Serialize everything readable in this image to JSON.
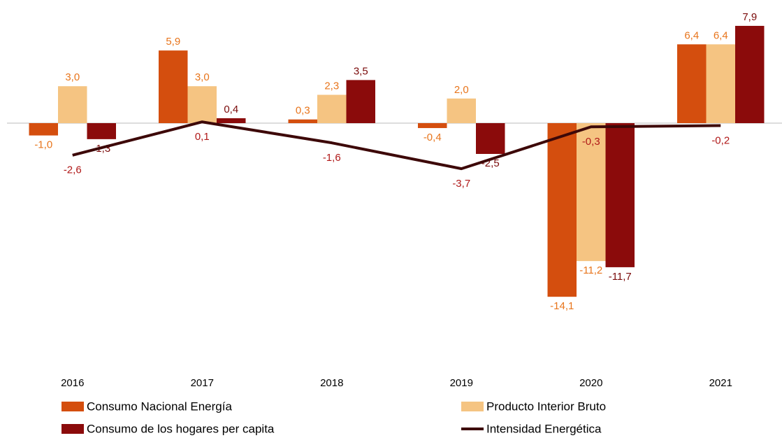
{
  "chart_data": {
    "type": "bar",
    "categories": [
      "2016",
      "2017",
      "2018",
      "2019",
      "2020",
      "2021"
    ],
    "ylim": [
      -20,
      10
    ],
    "series": [
      {
        "name": "Consumo Nacional Energía",
        "color": "#d44e0e",
        "label_color": "#e8751c",
        "values": [
          -1.0,
          5.9,
          0.3,
          -0.4,
          -14.1,
          6.4
        ],
        "value_labels": [
          "-1,0",
          "5,9",
          "0,3",
          "-0,4",
          "-14,1",
          "6,4"
        ]
      },
      {
        "name": "Producto Interior Bruto",
        "color": "#f5c482",
        "label_color": "#e8751c",
        "values": [
          3.0,
          3.0,
          2.3,
          2.0,
          -11.2,
          6.4
        ],
        "value_labels": [
          "3,0",
          "3,0",
          "2,3",
          "2,0",
          "-11,2",
          "6,4"
        ]
      },
      {
        "name": "Consumo de los hogares per capita",
        "color": "#8b0b0b",
        "label_color": "#7a0a0a",
        "values": [
          -1.3,
          0.4,
          3.5,
          -2.5,
          -11.7,
          7.9
        ],
        "value_labels": [
          "-1,3",
          "0,4",
          "3,5",
          "-2,5",
          "-11,7",
          "7,9"
        ]
      },
      {
        "name": "Intensidad Energética",
        "type": "line",
        "color": "#3d0808",
        "label_color": "#b01818",
        "values": [
          -2.6,
          0.1,
          -1.6,
          -3.7,
          -0.3,
          -0.2
        ],
        "value_labels": [
          "-2,6",
          "0,1",
          "-1,6",
          "-3,7",
          "-0,3",
          "-0,2"
        ]
      }
    ]
  }
}
